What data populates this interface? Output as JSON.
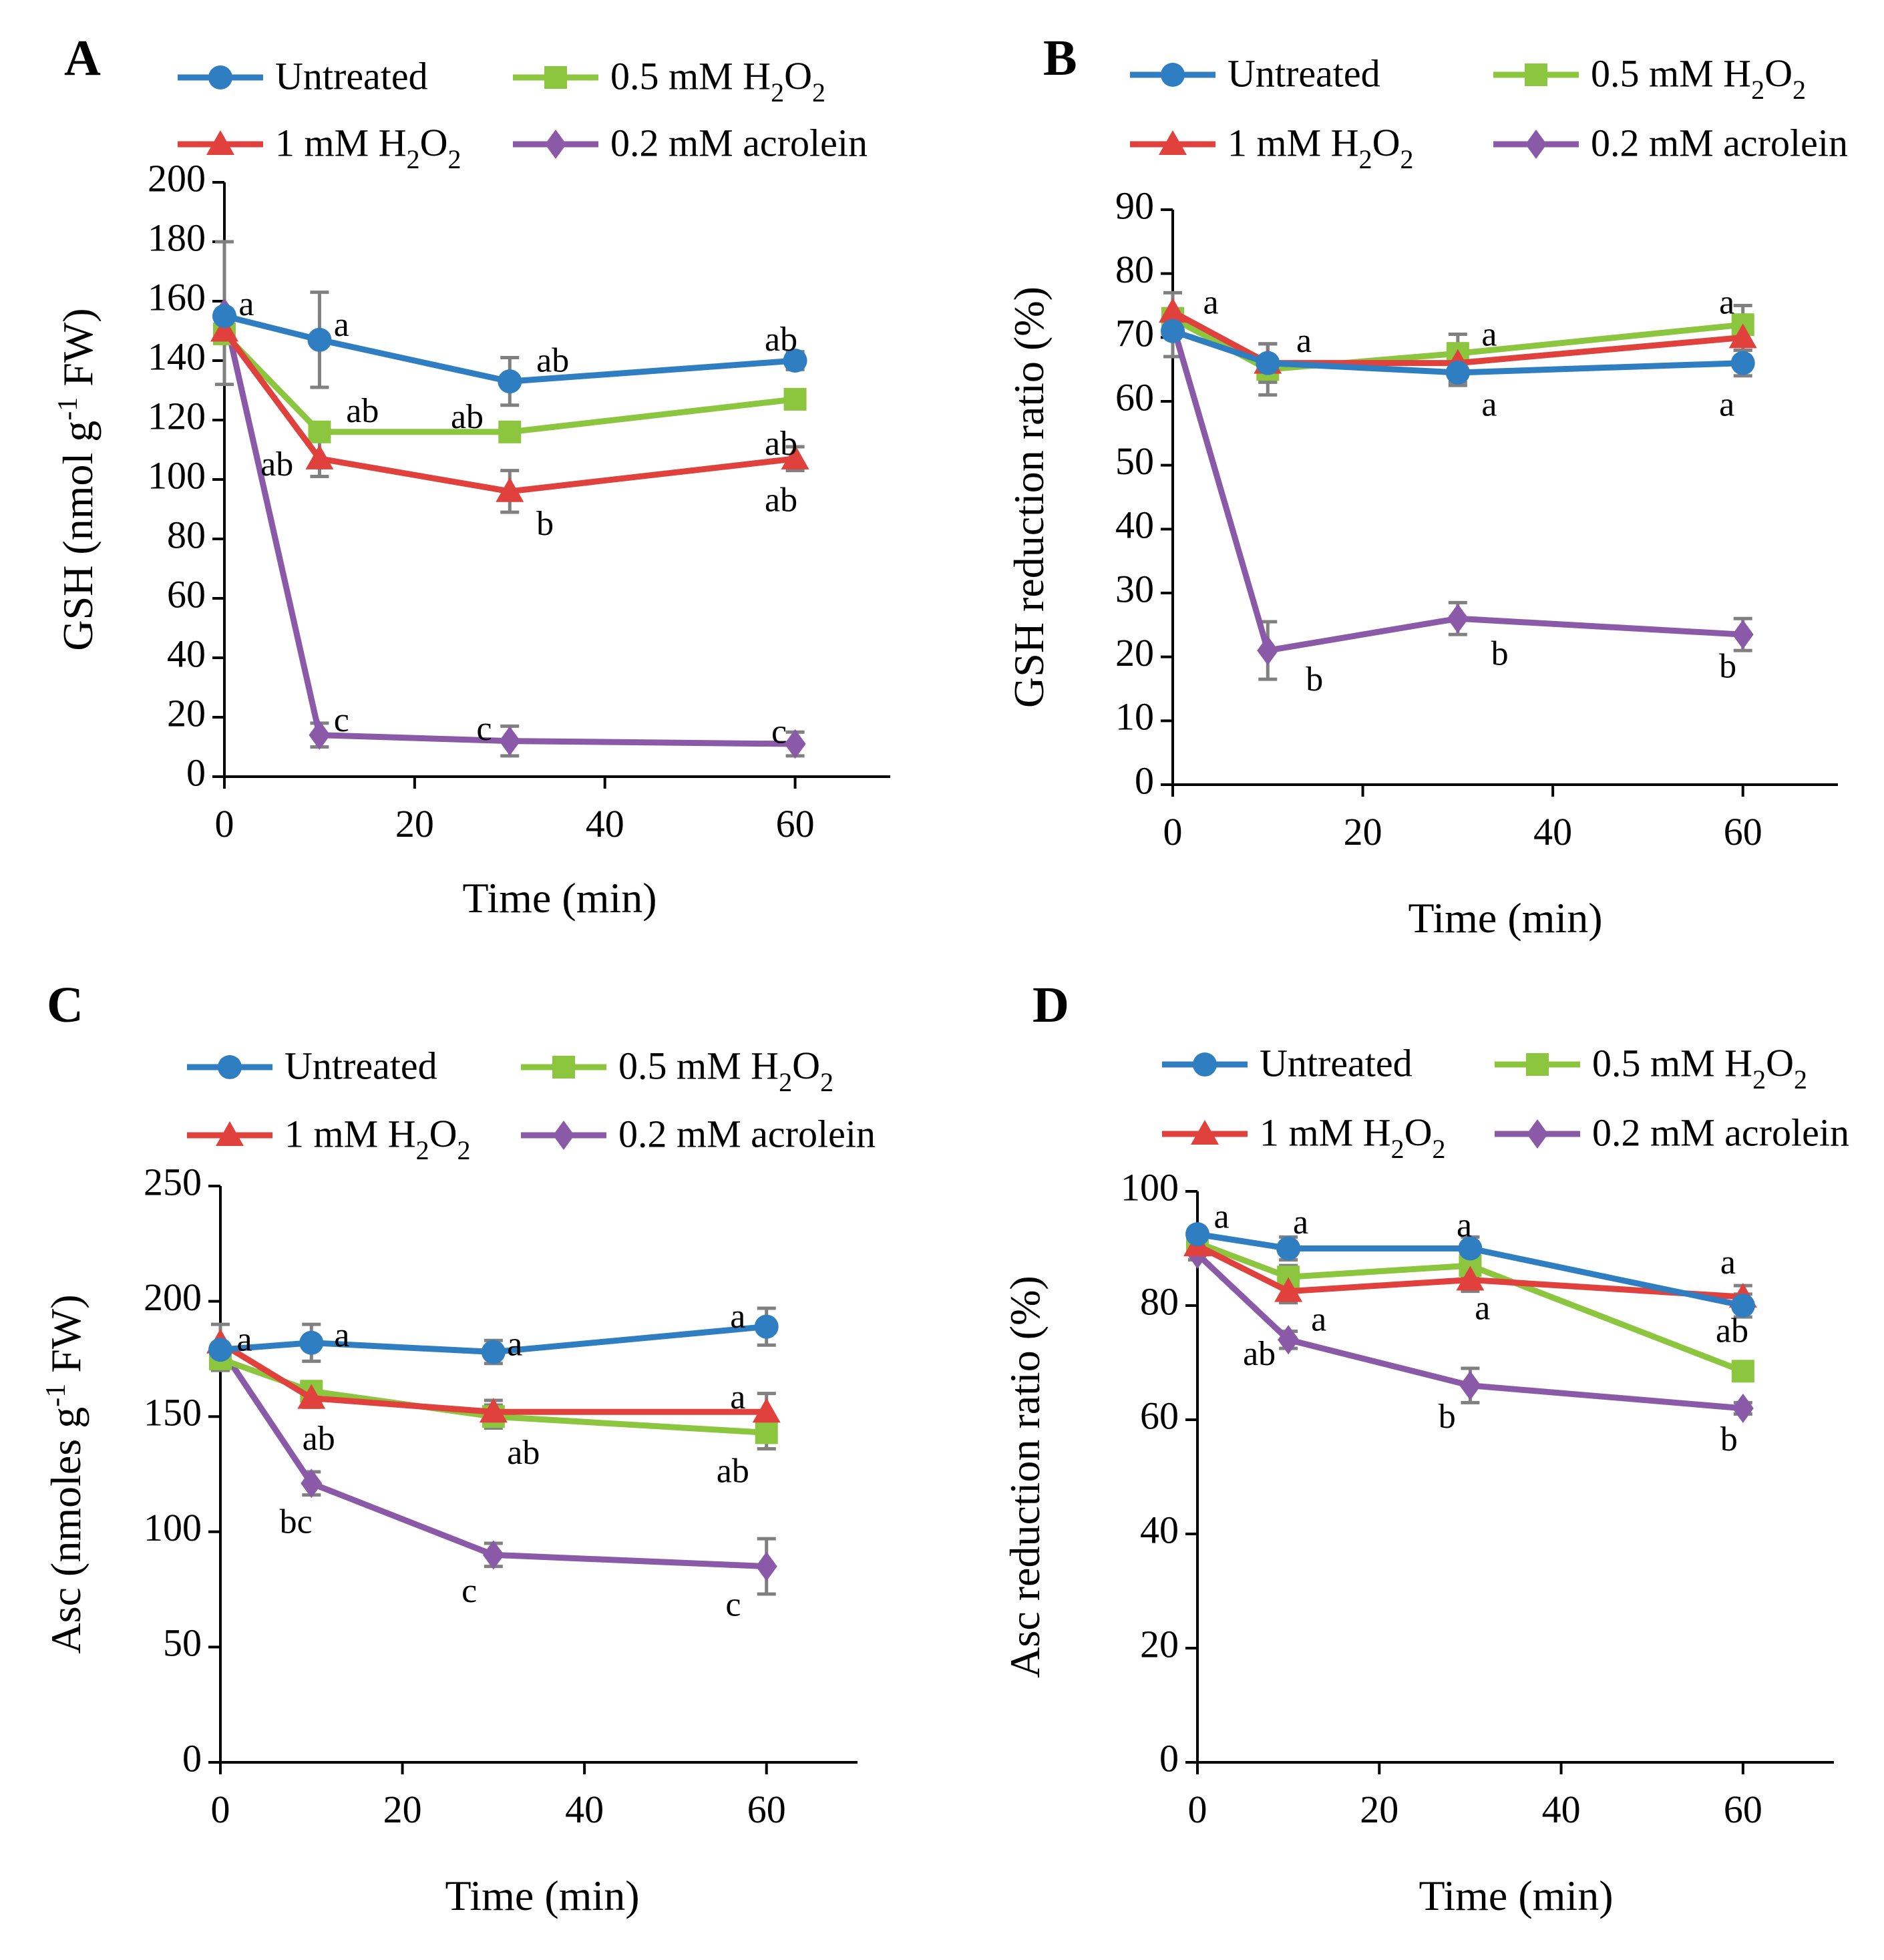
{
  "figure": {
    "legend": [
      {
        "name": "Untreated",
        "color": "#2f7ec2",
        "marker": "circle"
      },
      {
        "name": "0.5 mM H2O2",
        "color": "#8cc63f",
        "marker": "square"
      },
      {
        "name": "1 mM H2O2",
        "color": "#e0413c",
        "marker": "triangle"
      },
      {
        "name": "0.2 mM acrolein",
        "color": "#8a5aa8",
        "marker": "diamond"
      }
    ]
  },
  "chart_data": [
    {
      "panel": "A",
      "type": "line",
      "xlabel": "Time (min)",
      "ylabel": "GSH (nmol g-1 FW)",
      "ylabel_parts": {
        "pre": "GSH (nmol g",
        "sup": "-1",
        "post": " FW)"
      },
      "xlim": [
        0,
        70
      ],
      "ylim": [
        0,
        200
      ],
      "xticks": [
        0,
        20,
        40,
        60
      ],
      "yticks": [
        0,
        20,
        40,
        60,
        80,
        100,
        120,
        140,
        160,
        180,
        200
      ],
      "x": [
        0,
        10,
        30,
        60
      ],
      "series": [
        {
          "name": "Untreated",
          "values": [
            155,
            147,
            133,
            140
          ],
          "errors": [
            0,
            16,
            8,
            3
          ]
        },
        {
          "name": "0.5 mM H2O2",
          "values": [
            149,
            116,
            116,
            127
          ],
          "errors": [
            0,
            3,
            3,
            3
          ]
        },
        {
          "name": "1 mM H2O2",
          "values": [
            150,
            107,
            96,
            107
          ],
          "errors": [
            0,
            6,
            7,
            4
          ]
        },
        {
          "name": "0.2 mM acrolein",
          "values": [
            156,
            14,
            12,
            11
          ],
          "errors": [
            24,
            4,
            5,
            4
          ]
        }
      ],
      "annotations": [
        {
          "text": "a",
          "x": 1.5,
          "y": 158
        },
        {
          "text": "a",
          "x": 11.5,
          "y": 151
        },
        {
          "text": "ab",
          "x": 32.8,
          "y": 139
        },
        {
          "text": "ab",
          "x": 56.8,
          "y": 146
        },
        {
          "text": "ab",
          "x": 12.8,
          "y": 122
        },
        {
          "text": "ab",
          "x": 23.8,
          "y": 120
        },
        {
          "text": "ab",
          "x": 56.8,
          "y": 111
        },
        {
          "text": "ab",
          "x": 3.8,
          "y": 104
        },
        {
          "text": "b",
          "x": 32.8,
          "y": 84
        },
        {
          "text": "ab",
          "x": 56.8,
          "y": 92
        },
        {
          "text": "c",
          "x": 11.5,
          "y": 18
        },
        {
          "text": "c",
          "x": 26.5,
          "y": 15
        },
        {
          "text": "c",
          "x": 57.5,
          "y": 14
        }
      ]
    },
    {
      "panel": "B",
      "type": "line",
      "xlabel": "Time (min)",
      "ylabel": "GSH reduction ratio (%)",
      "xlim": [
        0,
        70
      ],
      "ylim": [
        0,
        90
      ],
      "xticks": [
        0,
        20,
        40,
        60
      ],
      "yticks": [
        0,
        10,
        20,
        30,
        40,
        50,
        60,
        70,
        80,
        90
      ],
      "x": [
        0,
        10,
        30,
        60
      ],
      "series": [
        {
          "name": "Untreated",
          "values": [
            71,
            66,
            64.5,
            66
          ],
          "errors": [
            0,
            3,
            2,
            2
          ]
        },
        {
          "name": "0.5 mM H2O2",
          "values": [
            73,
            65,
            67.5,
            72
          ],
          "errors": [
            0,
            4,
            3,
            3
          ]
        },
        {
          "name": "1 mM H2O2",
          "values": [
            74,
            66,
            66,
            70
          ],
          "errors": [
            0,
            3,
            3,
            2
          ]
        },
        {
          "name": "0.2 mM acrolein",
          "values": [
            72,
            21,
            26,
            23.5
          ],
          "errors": [
            5,
            4.5,
            2.5,
            2.5
          ]
        }
      ],
      "annotations": [
        {
          "text": "a",
          "x": 3.2,
          "y": 75
        },
        {
          "text": "a",
          "x": 13,
          "y": 69
        },
        {
          "text": "a",
          "x": 32.5,
          "y": 70
        },
        {
          "text": "a",
          "x": 57.5,
          "y": 75
        },
        {
          "text": "a",
          "x": 32.5,
          "y": 59
        },
        {
          "text": "a",
          "x": 57.5,
          "y": 59
        },
        {
          "text": "b",
          "x": 14,
          "y": 16
        },
        {
          "text": "b",
          "x": 33.5,
          "y": 20
        },
        {
          "text": "b",
          "x": 57.5,
          "y": 18
        }
      ]
    },
    {
      "panel": "C",
      "type": "line",
      "xlabel": "Time (min)",
      "ylabel": "Asc (nmoles g-1 FW)",
      "ylabel_parts": {
        "pre": "Asc (nmoles g",
        "sup": "-1",
        "post": " FW)"
      },
      "xlim": [
        0,
        70
      ],
      "ylim": [
        0,
        250
      ],
      "xticks": [
        0,
        20,
        40,
        60
      ],
      "yticks": [
        0,
        50,
        100,
        150,
        200,
        250
      ],
      "x": [
        0,
        10,
        30,
        60
      ],
      "series": [
        {
          "name": "Untreated",
          "values": [
            179,
            182,
            178,
            189
          ],
          "errors": [
            0,
            8,
            5,
            8
          ]
        },
        {
          "name": "0.5 mM H2O2",
          "values": [
            175,
            161,
            150,
            143
          ],
          "errors": [
            0,
            4,
            5,
            7
          ]
        },
        {
          "name": "1 mM H2O2",
          "values": [
            182,
            158,
            152,
            152
          ],
          "errors": [
            0,
            4,
            5,
            8
          ]
        },
        {
          "name": "0.2 mM acrolein",
          "values": [
            180,
            121,
            90,
            85
          ],
          "errors": [
            10,
            5,
            5,
            12
          ]
        }
      ],
      "annotations": [
        {
          "text": "a",
          "x": 1.8,
          "y": 182
        },
        {
          "text": "a",
          "x": 12.5,
          "y": 184
        },
        {
          "text": "a",
          "x": 31.5,
          "y": 180
        },
        {
          "text": "a",
          "x": 56,
          "y": 192
        },
        {
          "text": "ab",
          "x": 9,
          "y": 139
        },
        {
          "text": "ab",
          "x": 31.5,
          "y": 133
        },
        {
          "text": "a",
          "x": 56,
          "y": 157
        },
        {
          "text": "ab",
          "x": 54.5,
          "y": 125
        },
        {
          "text": "bc",
          "x": 6.5,
          "y": 103
        },
        {
          "text": "c",
          "x": 26.5,
          "y": 73
        },
        {
          "text": "c",
          "x": 55.5,
          "y": 67
        }
      ]
    },
    {
      "panel": "D",
      "type": "line",
      "xlabel": "Time (min)",
      "ylabel": "Asc reduction ratio (%)",
      "xlim": [
        0,
        70
      ],
      "ylim": [
        0,
        100
      ],
      "xticks": [
        0,
        20,
        40,
        60
      ],
      "yticks": [
        0,
        20,
        40,
        60,
        80,
        100
      ],
      "x": [
        0,
        10,
        30,
        60
      ],
      "series": [
        {
          "name": "Untreated",
          "values": [
            92.5,
            90,
            90,
            80
          ],
          "errors": [
            0,
            2,
            2,
            2
          ]
        },
        {
          "name": "0.5 mM H2O2",
          "values": [
            91,
            85,
            87,
            68.5
          ],
          "errors": [
            0,
            2,
            2,
            1.5
          ]
        },
        {
          "name": "1 mM H2O2",
          "values": [
            90.5,
            82.5,
            84.5,
            81.5
          ],
          "errors": [
            0,
            2,
            2,
            2
          ]
        },
        {
          "name": "0.2 mM acrolein",
          "values": [
            89,
            74,
            66,
            62
          ],
          "errors": [
            1,
            1.5,
            3,
            1
          ]
        }
      ],
      "annotations": [
        {
          "text": "a",
          "x": 1.8,
          "y": 95
        },
        {
          "text": "a",
          "x": 10.5,
          "y": 94
        },
        {
          "text": "a",
          "x": 28.5,
          "y": 93.5
        },
        {
          "text": "a",
          "x": 57.5,
          "y": 87
        },
        {
          "text": "a",
          "x": 12.5,
          "y": 77
        },
        {
          "text": "a",
          "x": 30.5,
          "y": 79
        },
        {
          "text": "ab",
          "x": 5,
          "y": 71
        },
        {
          "text": "ab",
          "x": 57,
          "y": 75
        },
        {
          "text": "b",
          "x": 26.5,
          "y": 60
        },
        {
          "text": "b",
          "x": 57.5,
          "y": 56
        }
      ]
    }
  ]
}
